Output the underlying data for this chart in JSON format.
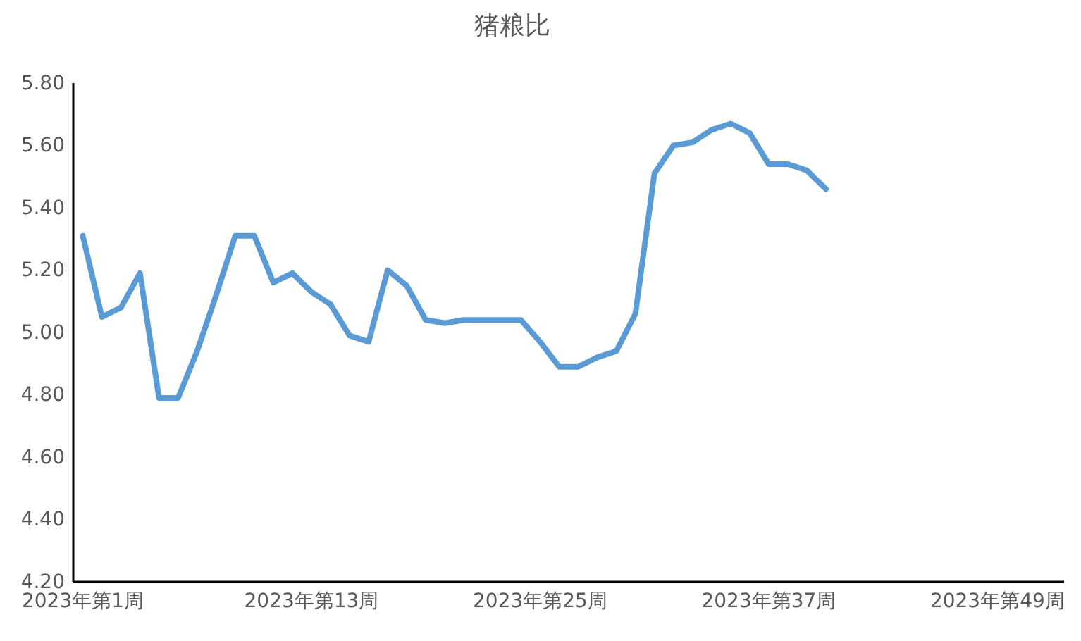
{
  "chart_data": {
    "type": "line",
    "title": "猪粮比",
    "categories": [
      "2023年第1周",
      null,
      null,
      null,
      null,
      null,
      null,
      null,
      null,
      null,
      null,
      null,
      "2023年第13周",
      null,
      null,
      null,
      null,
      null,
      null,
      null,
      null,
      null,
      null,
      null,
      "2023年第25周",
      null,
      null,
      null,
      null,
      null,
      null,
      null,
      null,
      null,
      null,
      null,
      "2023年第37周",
      null,
      null,
      null,
      null,
      null,
      null,
      null,
      null,
      null,
      null,
      null,
      "2023年第49周",
      null,
      null,
      null
    ],
    "series": [
      {
        "color": "#5b9bd5",
        "values": [
          5.31,
          5.05,
          5.08,
          5.19,
          4.79,
          4.79,
          4.94,
          5.12,
          5.31,
          5.31,
          5.16,
          5.19,
          5.13,
          5.09,
          4.99,
          4.97,
          5.2,
          5.15,
          5.04,
          5.03,
          5.04,
          5.04,
          5.04,
          5.04,
          4.97,
          4.89,
          4.89,
          4.92,
          4.94,
          5.06,
          5.51,
          5.6,
          5.61,
          5.65,
          5.67,
          5.64,
          5.54,
          5.54,
          5.52,
          5.46,
          null,
          null,
          null,
          null,
          null,
          null,
          null,
          null,
          null,
          null,
          null,
          null
        ]
      }
    ],
    "ylim": [
      4.2,
      5.8
    ],
    "yticks": [
      {
        "value": 4.2,
        "label": "4.20"
      },
      {
        "value": 4.4,
        "label": "4.40"
      },
      {
        "value": 4.6,
        "label": "4.60"
      },
      {
        "value": 4.8,
        "label": "4.80"
      },
      {
        "value": 5.0,
        "label": "5.00"
      },
      {
        "value": 5.2,
        "label": "5.20"
      },
      {
        "value": 5.4,
        "label": "5.40"
      },
      {
        "value": 5.6,
        "label": "5.60"
      },
      {
        "value": 5.8,
        "label": "5.80"
      }
    ],
    "grid": false,
    "legend": false,
    "marker": "none",
    "line_style": "solid"
  }
}
